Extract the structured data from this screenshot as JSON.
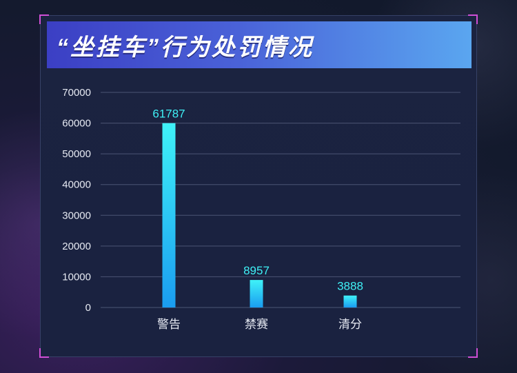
{
  "chart_data": {
    "type": "bar",
    "title": "“坐挂车”行为处罚情况",
    "categories": [
      "警告",
      "禁赛",
      "清分"
    ],
    "values": [
      61787,
      8957,
      3888
    ],
    "data_labels": [
      "61787",
      "8957",
      "3888"
    ],
    "yticks": [
      "0",
      "10000",
      "20000",
      "30000",
      "40000",
      "50000",
      "60000",
      "70000"
    ],
    "ylim": [
      0,
      70000
    ],
    "xlabel": "",
    "ylabel": "",
    "grid": true,
    "colors": {
      "bar_top": "#3ff2f8",
      "bar_bottom": "#1a9cf0",
      "label": "#3ff0f5",
      "title_bg_start": "#3b3fc4",
      "title_bg_end": "#5aa6f0"
    }
  }
}
